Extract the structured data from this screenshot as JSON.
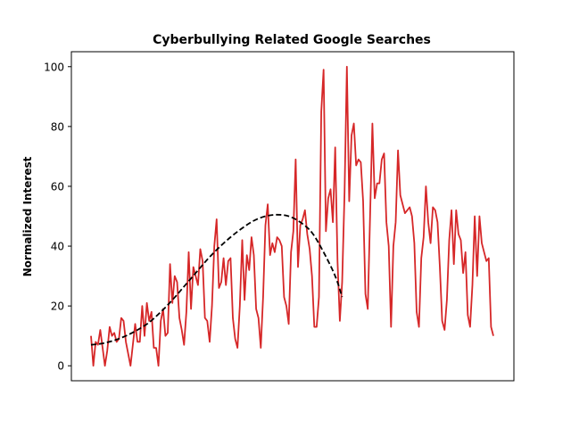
{
  "chart_data": {
    "type": "line",
    "title": "Cyberbullying Related Google Searches",
    "xlabel": "",
    "ylabel": "Normalized Interest",
    "ylim": [
      -5,
      105
    ],
    "yticks": [
      0,
      20,
      40,
      60,
      80,
      100
    ],
    "xticks": [],
    "grid": false,
    "series": [
      {
        "color": "#d62728",
        "style": "solid",
        "values": [
          10,
          0,
          8,
          7,
          12,
          6,
          0,
          5,
          13,
          10,
          11,
          8,
          9,
          16,
          15,
          8,
          4,
          0,
          7,
          14,
          8,
          8,
          20,
          10,
          21,
          15,
          18,
          6,
          6,
          0,
          15,
          19,
          10,
          11,
          34,
          21,
          30,
          28,
          16,
          12,
          7,
          18,
          38,
          19,
          33,
          30,
          27,
          39,
          35,
          16,
          15,
          8,
          20,
          40,
          49,
          26,
          28,
          36,
          27,
          35,
          36,
          16,
          9,
          6,
          20,
          42,
          22,
          37,
          32,
          43,
          37,
          19,
          16,
          6,
          23,
          47,
          54,
          37,
          41,
          38,
          43,
          42,
          40,
          23,
          20,
          14,
          38,
          45,
          69,
          33,
          47,
          49,
          52,
          44,
          39,
          30,
          13,
          13,
          23,
          85,
          99,
          45,
          56,
          59,
          48,
          73,
          35,
          15,
          28,
          58,
          100,
          55,
          77,
          81,
          67,
          69,
          68,
          55,
          24,
          19,
          50,
          81,
          56,
          61,
          61,
          69,
          71,
          48,
          40,
          13,
          40,
          48,
          72,
          57,
          54,
          51,
          52,
          53,
          50,
          41,
          18,
          13,
          36,
          43,
          60,
          48,
          41,
          53,
          52,
          48,
          33,
          15,
          12,
          22,
          42,
          52,
          34,
          52,
          44,
          42,
          31,
          38,
          17,
          13,
          27,
          50,
          30,
          50,
          41,
          38,
          35,
          36,
          13,
          10
        ]
      },
      {
        "color": "#000000",
        "style": "dashed",
        "points": [
          [
            0,
            7
          ],
          [
            5,
            7.5
          ],
          [
            10,
            8.5
          ],
          [
            15,
            10
          ],
          [
            20,
            12
          ],
          [
            25,
            14.5
          ],
          [
            30,
            18
          ],
          [
            35,
            22
          ],
          [
            40,
            26.5
          ],
          [
            45,
            31
          ],
          [
            50,
            35.5
          ],
          [
            55,
            39.5
          ],
          [
            60,
            43
          ],
          [
            65,
            46
          ],
          [
            70,
            48.5
          ],
          [
            75,
            50
          ],
          [
            80,
            50.5
          ],
          [
            85,
            50
          ],
          [
            90,
            48
          ],
          [
            95,
            44.5
          ],
          [
            100,
            38
          ],
          [
            105,
            30
          ],
          [
            108,
            23
          ]
        ]
      }
    ]
  }
}
